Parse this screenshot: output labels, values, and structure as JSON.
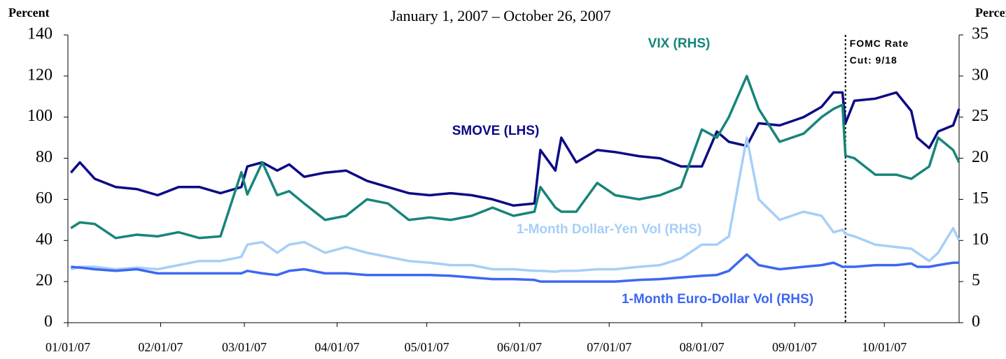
{
  "chart_data": {
    "type": "line",
    "subtitle": "January 1, 2007 – October 26, 2007",
    "y_label": "Percent",
    "y2_label": "Percent",
    "x": [
      "01/02/07",
      "01/05/07",
      "01/10/07",
      "01/17/07",
      "01/24/07",
      "01/31/07",
      "02/07/07",
      "02/14/07",
      "02/21/07",
      "02/28/07",
      "03/02/07",
      "03/07/07",
      "03/12/07",
      "03/16/07",
      "03/21/07",
      "03/28/07",
      "04/04/07",
      "04/11/07",
      "04/18/07",
      "04/25/07",
      "05/02/07",
      "05/09/07",
      "05/16/07",
      "05/23/07",
      "05/30/07",
      "06/06/07",
      "06/08/07",
      "06/13/07",
      "06/15/07",
      "06/20/07",
      "06/27/07",
      "07/03/07",
      "07/11/07",
      "07/18/07",
      "07/25/07",
      "08/01/07",
      "08/06/07",
      "08/10/07",
      "08/16/07",
      "08/20/07",
      "08/27/07",
      "09/04/07",
      "09/10/07",
      "09/14/07",
      "09/17/07",
      "09/18/07",
      "09/21/07",
      "09/28/07",
      "10/05/07",
      "10/10/07",
      "10/12/07",
      "10/16/07",
      "10/19/07",
      "10/24/07",
      "10/26/07"
    ],
    "xlim": [
      "01/01/07",
      "10/26/07"
    ],
    "xticks": [
      "01/01/07",
      "02/01/07",
      "03/01/07",
      "04/01/07",
      "05/01/07",
      "06/01/07",
      "07/01/07",
      "08/01/07",
      "09/01/07",
      "10/01/07"
    ],
    "ylim": [
      0,
      140
    ],
    "yticks": [
      0,
      20,
      40,
      60,
      80,
      100,
      120,
      140
    ],
    "y2lim": [
      0,
      35
    ],
    "y2ticks": [
      0,
      5,
      10,
      15,
      20,
      25,
      30,
      35
    ],
    "series": [
      {
        "name": "SMOVE (LHS)",
        "color": "#0b0b85",
        "values": [
          73,
          78,
          70,
          66,
          65,
          62,
          66,
          66,
          63,
          66,
          76,
          78,
          74,
          77,
          71,
          73,
          74,
          69,
          66,
          63,
          62,
          63,
          62,
          60,
          57,
          58,
          84,
          74,
          90,
          78,
          84,
          83,
          81,
          80,
          76,
          76,
          93,
          88,
          86,
          97,
          96,
          100,
          105,
          112,
          112,
          97,
          108,
          109,
          112,
          103,
          90,
          85,
          93,
          96,
          104
        ]
      },
      {
        "name": "VIX (RHS)",
        "color": "#17857a",
        "axis": "y2",
        "values": [
          11.5,
          12.2,
          12,
          10.3,
          10.7,
          10.5,
          11,
          10.3,
          10.5,
          18.3,
          15.6,
          19.5,
          15.5,
          16,
          14.5,
          12.5,
          13,
          15,
          14.5,
          12.5,
          12.8,
          12.5,
          13,
          14,
          13,
          13.5,
          16.5,
          14,
          13.5,
          13.5,
          17,
          15.5,
          15,
          15.5,
          16.5,
          23.5,
          22.5,
          25,
          30,
          26,
          22,
          23,
          25,
          26,
          26.5,
          20.3,
          20,
          18,
          18,
          17.5,
          18,
          19,
          22.5,
          21,
          19.5
        ]
      },
      {
        "name": "1-Month Dollar-Yen Vol (RHS)",
        "color": "#a6cff7",
        "axis": "y2",
        "values": [
          6.5,
          6.8,
          6.8,
          6.5,
          6.7,
          6.5,
          7,
          7.5,
          7.5,
          8,
          9.5,
          9.8,
          8.5,
          9.5,
          9.8,
          8.5,
          9.2,
          8.5,
          8,
          7.5,
          7.3,
          7,
          7,
          6.5,
          6.5,
          6.3,
          6.3,
          6.2,
          6.3,
          6.3,
          6.5,
          6.5,
          6.8,
          7,
          7.8,
          9.5,
          9.5,
          10.5,
          22.5,
          15,
          12.5,
          13.5,
          13,
          11,
          11.3,
          10.8,
          10.5,
          9.5,
          9.2,
          9,
          8.5,
          7.5,
          8.5,
          11.5,
          10
        ]
      },
      {
        "name": "1-Month Euro-Dollar Vol (RHS)",
        "color": "#3d67f2",
        "axis": "y2",
        "values": [
          6.8,
          6.7,
          6.5,
          6.3,
          6.5,
          6,
          6,
          6,
          6,
          6,
          6.3,
          6,
          5.8,
          6.3,
          6.5,
          6,
          6,
          5.8,
          5.8,
          5.8,
          5.8,
          5.7,
          5.5,
          5.3,
          5.3,
          5.2,
          5,
          5,
          5,
          5,
          5,
          5,
          5.2,
          5.3,
          5.5,
          5.7,
          5.8,
          6.3,
          8.3,
          7,
          6.5,
          6.8,
          7,
          7.3,
          6.8,
          6.8,
          6.8,
          7,
          7,
          7.2,
          6.8,
          6.8,
          7,
          7.3,
          7.3
        ]
      }
    ],
    "annotation": {
      "x": "09/18/07",
      "lines": [
        "FOMC Rate",
        "Cut: 9/18"
      ]
    }
  }
}
